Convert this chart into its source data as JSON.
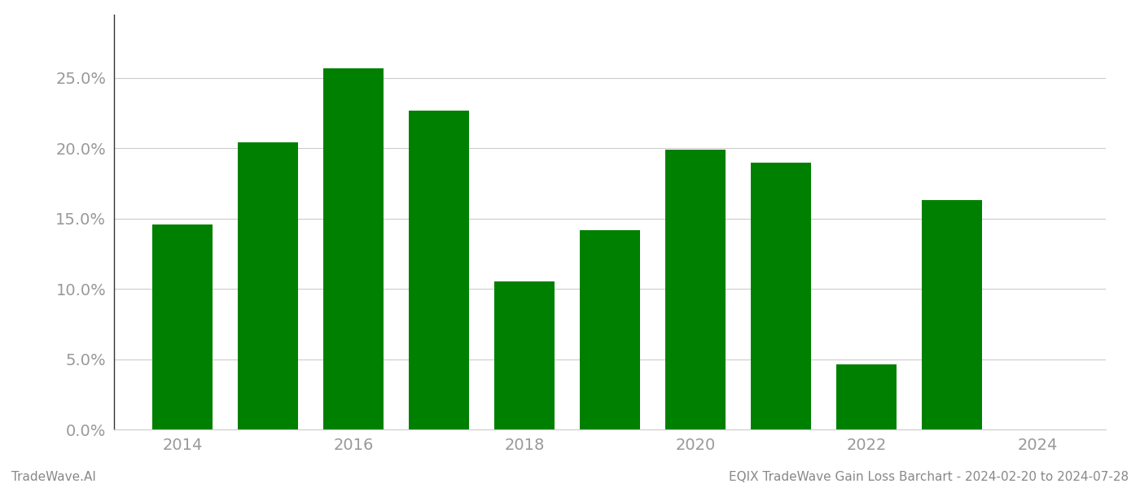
{
  "years": [
    2014,
    2015,
    2016,
    2017,
    2018,
    2019,
    2020,
    2021,
    2022,
    2023
  ],
  "values": [
    0.146,
    0.204,
    0.257,
    0.227,
    0.105,
    0.142,
    0.199,
    0.19,
    0.046,
    0.163
  ],
  "bar_color": "#008000",
  "background_color": "#ffffff",
  "grid_color": "#cccccc",
  "tick_label_color": "#999999",
  "footer_left": "TradeWave.AI",
  "footer_right": "EQIX TradeWave Gain Loss Barchart - 2024-02-20 to 2024-07-28",
  "footer_color": "#888888",
  "footer_fontsize": 11,
  "ylim": [
    0,
    0.295
  ],
  "yticks": [
    0.0,
    0.05,
    0.1,
    0.15,
    0.2,
    0.25
  ],
  "bar_width": 0.7,
  "figsize": [
    14.0,
    6.0
  ],
  "dpi": 100
}
